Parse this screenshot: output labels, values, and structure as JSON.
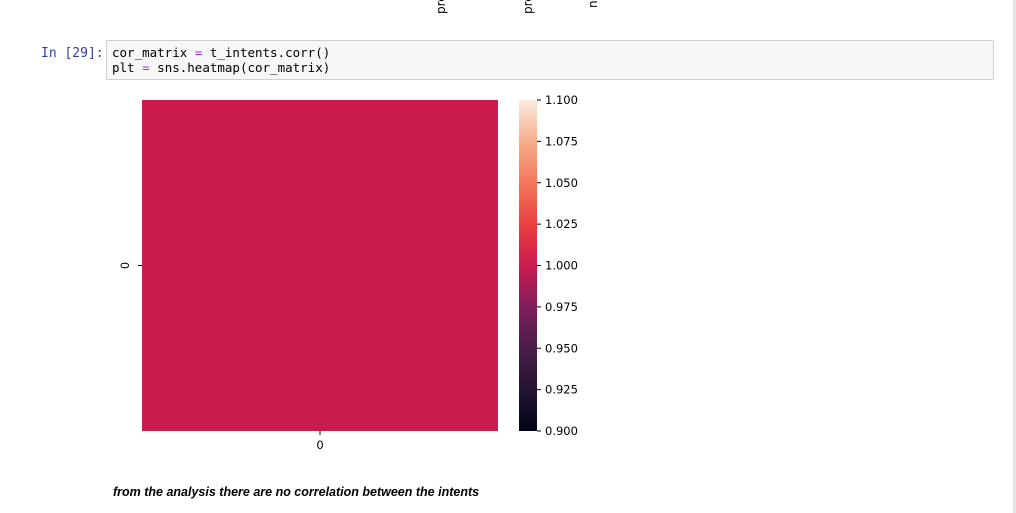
{
  "top_fragments": [
    "pre",
    "pre",
    "n"
  ],
  "cell": {
    "prompt": "In [29]:",
    "code_lines": [
      [
        {
          "t": "cor_matrix ",
          "c": "default"
        },
        {
          "t": "=",
          "c": "op"
        },
        {
          "t": " t_intents.corr()",
          "c": "default"
        }
      ],
      [
        {
          "t": "plt ",
          "c": "default"
        },
        {
          "t": "=",
          "c": "op"
        },
        {
          "t": " sns.heatmap(cor_matrix)",
          "c": "default"
        }
      ]
    ]
  },
  "chart_data": {
    "type": "heatmap",
    "x_tick_labels": [
      "0"
    ],
    "y_tick_labels": [
      "0"
    ],
    "values": [
      [
        1.0
      ]
    ],
    "colorbar": {
      "range": [
        0.9,
        1.1
      ],
      "ticks": [
        "1.100",
        "1.075",
        "1.050",
        "1.025",
        "1.000",
        "0.975",
        "0.950",
        "0.925",
        "0.900"
      ],
      "colormap": "rocket"
    },
    "cell_color": "#cb1b4f"
  },
  "markdown": {
    "text": "from the analysis there are no correlation between the intents"
  }
}
